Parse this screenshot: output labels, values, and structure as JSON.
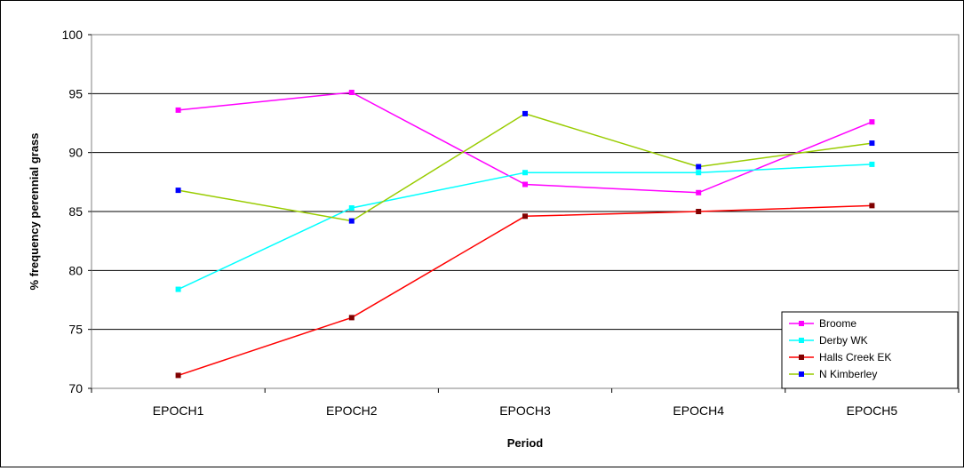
{
  "chart_data": {
    "type": "line",
    "categories": [
      "EPOCH1",
      "EPOCH2",
      "EPOCH3",
      "EPOCH4",
      "EPOCH5"
    ],
    "xlabel": "Period",
    "ylabel": "% frequency perennial grass",
    "ylim": [
      70,
      100
    ],
    "yticks": [
      70,
      75,
      80,
      85,
      90,
      95,
      100
    ],
    "grid": true,
    "legend_position": "bottom-right",
    "series": [
      {
        "name": "Broome",
        "values": [
          93.6,
          95.1,
          87.3,
          86.6,
          92.6
        ],
        "line_color": "#ff00ff",
        "marker_color": "#ff00ff"
      },
      {
        "name": "Derby WK",
        "values": [
          78.4,
          85.3,
          88.3,
          88.3,
          89.0
        ],
        "line_color": "#00ffff",
        "marker_color": "#00ffff"
      },
      {
        "name": "Halls Creek EK",
        "values": [
          71.1,
          76.0,
          84.6,
          85.0,
          85.5
        ],
        "line_color": "#ff0000",
        "marker_color": "#800000"
      },
      {
        "name": "N Kimberley",
        "values": [
          86.8,
          84.2,
          93.3,
          88.8,
          90.8
        ],
        "line_color": "#99cc00",
        "marker_color": "#0000ff"
      }
    ]
  }
}
